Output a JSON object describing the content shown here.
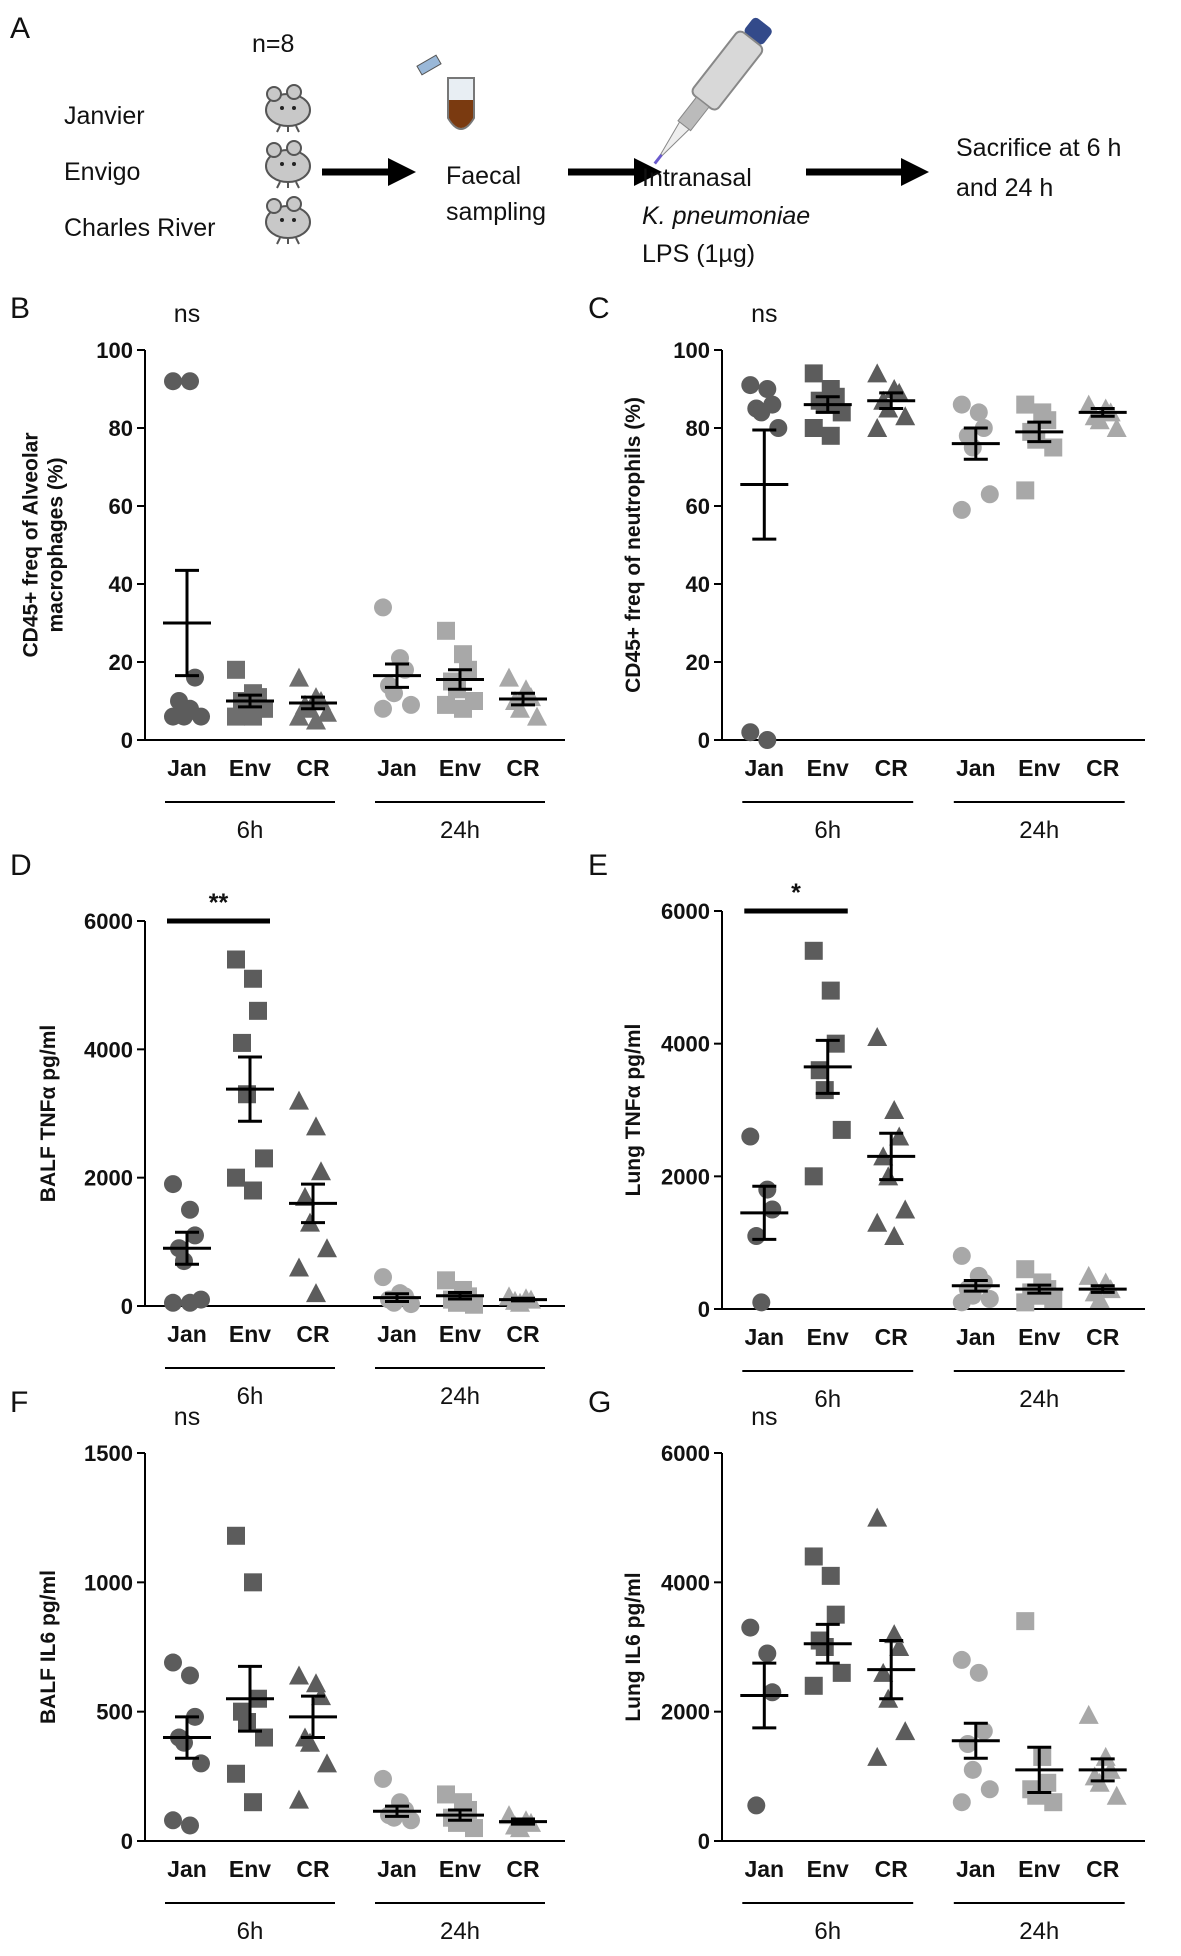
{
  "schematic": {
    "label": "A",
    "n": "n=8",
    "strains": [
      "Janvier",
      "Envigo",
      "Charles River"
    ],
    "step1": [
      "Faecal",
      "sampling"
    ],
    "step2": [
      "Intranasal",
      "K. pneumoniae",
      "LPS (1µg)"
    ],
    "step3": [
      "Sacrifice at 6 h",
      "and 24 h"
    ]
  },
  "chart_data": [
    {
      "type": "scatter",
      "panel": "B",
      "ylabel": [
        "CD45+ freq of Alveolar",
        "macrophages (%)"
      ],
      "annotation": "ns",
      "ylim": [
        0,
        100
      ],
      "yticks": [
        0,
        20,
        40,
        60,
        80,
        100
      ],
      "groups": [
        {
          "label": "6h",
          "series": [
            {
              "name": "Jan",
              "marker": "circle",
              "color": "#5c5c5c",
              "values": [
                92,
                92,
                16,
                10,
                6,
                6,
                6,
                8
              ],
              "mean": 30,
              "sem": 13.5
            },
            {
              "name": "Env",
              "marker": "square",
              "color": "#6e6e6e",
              "values": [
                18,
                12,
                11,
                10,
                9,
                8,
                6,
                6
              ],
              "mean": 10,
              "sem": 1.5
            },
            {
              "name": "CR",
              "marker": "triangle",
              "color": "#6e6e6e",
              "values": [
                16,
                11,
                10,
                9,
                8,
                7,
                6,
                5
              ],
              "mean": 9.5,
              "sem": 1.5
            }
          ]
        },
        {
          "label": "24h",
          "series": [
            {
              "name": "Jan",
              "marker": "circle",
              "color": "#a8a8a8",
              "values": [
                34,
                21,
                18,
                14,
                12,
                9,
                8
              ],
              "mean": 16.5,
              "sem": 3
            },
            {
              "name": "Env",
              "marker": "square",
              "color": "#a8a8a8",
              "values": [
                28,
                22,
                18,
                15,
                13,
                10,
                9,
                8
              ],
              "mean": 15.5,
              "sem": 2.5
            },
            {
              "name": "CR",
              "marker": "triangle",
              "color": "#a8a8a8",
              "values": [
                16,
                13,
                11,
                10,
                8,
                6
              ],
              "mean": 10.5,
              "sem": 1.5
            }
          ]
        }
      ]
    },
    {
      "type": "scatter",
      "panel": "C",
      "ylabel": [
        "CD45+ freq of neutrophils (%)"
      ],
      "annotation": "ns",
      "ylim": [
        0,
        100
      ],
      "yticks": [
        0,
        20,
        40,
        60,
        80,
        100
      ],
      "groups": [
        {
          "label": "6h",
          "series": [
            {
              "name": "Jan",
              "marker": "circle",
              "color": "#5c5c5c",
              "values": [
                91,
                90,
                86,
                85,
                84,
                80,
                2,
                0
              ],
              "mean": 65.5,
              "sem": 14
            },
            {
              "name": "Env",
              "marker": "square",
              "color": "#5c5c5c",
              "values": [
                94,
                90,
                88,
                87,
                86,
                84,
                80,
                78
              ],
              "mean": 86,
              "sem": 2
            },
            {
              "name": "CR",
              "marker": "triangle",
              "color": "#5c5c5c",
              "values": [
                94,
                90,
                89,
                87,
                85,
                83,
                80
              ],
              "mean": 87,
              "sem": 2
            }
          ]
        },
        {
          "label": "24h",
          "series": [
            {
              "name": "Jan",
              "marker": "circle",
              "color": "#a8a8a8",
              "values": [
                86,
                84,
                80,
                78,
                75,
                63,
                59
              ],
              "mean": 76,
              "sem": 4
            },
            {
              "name": "Env",
              "marker": "square",
              "color": "#a8a8a8",
              "values": [
                86,
                84,
                82,
                79,
                77,
                75,
                64
              ],
              "mean": 79,
              "sem": 2.5
            },
            {
              "name": "CR",
              "marker": "triangle",
              "color": "#a8a8a8",
              "values": [
                86,
                85,
                84,
                83,
                82,
                80
              ],
              "mean": 84,
              "sem": 1
            }
          ]
        }
      ]
    },
    {
      "type": "scatter",
      "panel": "D",
      "ylabel": [
        "BALF TNFα pg/ml"
      ],
      "significance": {
        "label": "**",
        "between": [
          "Jan",
          "Env"
        ]
      },
      "ylim": [
        0,
        6000
      ],
      "yticks": [
        0,
        2000,
        4000,
        6000
      ],
      "groups": [
        {
          "label": "6h",
          "series": [
            {
              "name": "Jan",
              "marker": "circle",
              "color": "#5c5c5c",
              "values": [
                1900,
                1500,
                1100,
                900,
                700,
                100,
                50,
                50
              ],
              "mean": 900,
              "sem": 250
            },
            {
              "name": "Env",
              "marker": "square",
              "color": "#5c5c5c",
              "values": [
                5400,
                5100,
                4600,
                4100,
                3300,
                2300,
                2000,
                1800
              ],
              "mean": 3380,
              "sem": 500
            },
            {
              "name": "CR",
              "marker": "triangle",
              "color": "#5c5c5c",
              "values": [
                3200,
                2800,
                2100,
                1700,
                1300,
                900,
                600,
                200
              ],
              "mean": 1600,
              "sem": 300
            }
          ]
        },
        {
          "label": "24h",
          "series": [
            {
              "name": "Jan",
              "marker": "circle",
              "color": "#a8a8a8",
              "values": [
                450,
                200,
                150,
                100,
                50,
                30
              ],
              "mean": 130,
              "sem": 60
            },
            {
              "name": "Env",
              "marker": "square",
              "color": "#a8a8a8",
              "values": [
                400,
                250,
                150,
                100,
                50,
                20
              ],
              "mean": 160,
              "sem": 50
            },
            {
              "name": "CR",
              "marker": "triangle",
              "color": "#a8a8a8",
              "values": [
                150,
                120,
                100,
                80,
                50
              ],
              "mean": 100,
              "sem": 20
            }
          ]
        }
      ]
    },
    {
      "type": "scatter",
      "panel": "E",
      "ylabel": [
        "Lung TNFα pg/ml"
      ],
      "significance": {
        "label": "*",
        "between": [
          "Jan",
          "Env"
        ]
      },
      "ylim": [
        0,
        6000
      ],
      "yticks": [
        0,
        2000,
        4000,
        6000
      ],
      "groups": [
        {
          "label": "6h",
          "series": [
            {
              "name": "Jan",
              "marker": "circle",
              "color": "#5c5c5c",
              "values": [
                2600,
                1800,
                1500,
                1100,
                100
              ],
              "mean": 1450,
              "sem": 400
            },
            {
              "name": "Env",
              "marker": "square",
              "color": "#5c5c5c",
              "values": [
                5400,
                4800,
                4000,
                3600,
                3300,
                2700,
                2000
              ],
              "mean": 3650,
              "sem": 400
            },
            {
              "name": "CR",
              "marker": "triangle",
              "color": "#5c5c5c",
              "values": [
                4100,
                3000,
                2600,
                2300,
                2000,
                1500,
                1300,
                1100
              ],
              "mean": 2300,
              "sem": 350
            }
          ]
        },
        {
          "label": "24h",
          "series": [
            {
              "name": "Jan",
              "marker": "circle",
              "color": "#a8a8a8",
              "values": [
                800,
                500,
                400,
                300,
                200,
                150,
                100
              ],
              "mean": 350,
              "sem": 80
            },
            {
              "name": "Env",
              "marker": "square",
              "color": "#a8a8a8",
              "values": [
                600,
                400,
                300,
                250,
                200,
                150,
                100
              ],
              "mean": 300,
              "sem": 60
            },
            {
              "name": "CR",
              "marker": "triangle",
              "color": "#a8a8a8",
              "values": [
                500,
                400,
                300,
                250,
                150
              ],
              "mean": 300,
              "sem": 50
            }
          ]
        }
      ]
    },
    {
      "type": "scatter",
      "panel": "F",
      "ylabel": [
        "BALF IL6 pg/ml"
      ],
      "annotation": "ns",
      "ylim": [
        0,
        1500
      ],
      "yticks": [
        0,
        500,
        1000,
        1500
      ],
      "groups": [
        {
          "label": "6h",
          "series": [
            {
              "name": "Jan",
              "marker": "circle",
              "color": "#5c5c5c",
              "values": [
                690,
                640,
                480,
                400,
                380,
                300,
                80,
                60
              ],
              "mean": 400,
              "sem": 80
            },
            {
              "name": "Env",
              "marker": "square",
              "color": "#5c5c5c",
              "values": [
                1180,
                1000,
                550,
                500,
                460,
                400,
                260,
                150
              ],
              "mean": 550,
              "sem": 125
            },
            {
              "name": "CR",
              "marker": "triangle",
              "color": "#5c5c5c",
              "values": [
                640,
                610,
                560,
                400,
                380,
                300,
                160
              ],
              "mean": 480,
              "sem": 80
            }
          ]
        },
        {
          "label": "24h",
          "series": [
            {
              "name": "Jan",
              "marker": "circle",
              "color": "#a8a8a8",
              "values": [
                240,
                150,
                120,
                100,
                90,
                80
              ],
              "mean": 115,
              "sem": 20
            },
            {
              "name": "Env",
              "marker": "square",
              "color": "#a8a8a8",
              "values": [
                180,
                150,
                120,
                90,
                70,
                50
              ],
              "mean": 100,
              "sem": 20
            },
            {
              "name": "CR",
              "marker": "triangle",
              "color": "#a8a8a8",
              "values": [
                100,
                80,
                70,
                60,
                50
              ],
              "mean": 75,
              "sem": 10
            }
          ]
        }
      ]
    },
    {
      "type": "scatter",
      "panel": "G",
      "ylabel": [
        "Lung IL6 pg/ml"
      ],
      "annotation": "ns",
      "ylim": [
        0,
        6000
      ],
      "yticks": [
        0,
        2000,
        4000,
        6000
      ],
      "groups": [
        {
          "label": "6h",
          "series": [
            {
              "name": "Jan",
              "marker": "circle",
              "color": "#5c5c5c",
              "values": [
                3300,
                2900,
                2300,
                550
              ],
              "mean": 2250,
              "sem": 500
            },
            {
              "name": "Env",
              "marker": "square",
              "color": "#5c5c5c",
              "values": [
                4400,
                4100,
                3500,
                3100,
                3000,
                2600,
                2400
              ],
              "mean": 3050,
              "sem": 300
            },
            {
              "name": "CR",
              "marker": "triangle",
              "color": "#5c5c5c",
              "values": [
                5000,
                3200,
                3000,
                2600,
                2200,
                1700,
                1300
              ],
              "mean": 2650,
              "sem": 450
            }
          ]
        },
        {
          "label": "24h",
          "series": [
            {
              "name": "Jan",
              "marker": "circle",
              "color": "#a8a8a8",
              "values": [
                2800,
                2600,
                1700,
                1500,
                1100,
                800,
                600
              ],
              "mean": 1550,
              "sem": 270
            },
            {
              "name": "Env",
              "marker": "square",
              "color": "#a8a8a8",
              "values": [
                3400,
                1300,
                900,
                800,
                700,
                600
              ],
              "mean": 1100,
              "sem": 350
            },
            {
              "name": "CR",
              "marker": "triangle",
              "color": "#a8a8a8",
              "values": [
                1950,
                1300,
                1100,
                1000,
                900,
                700
              ],
              "mean": 1100,
              "sem": 170
            }
          ]
        }
      ]
    }
  ]
}
